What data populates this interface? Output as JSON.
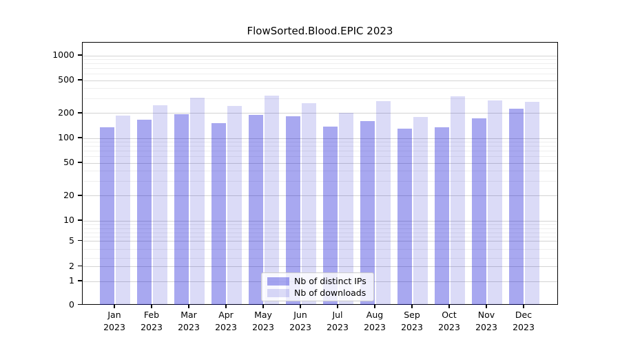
{
  "chart_data": {
    "type": "bar",
    "title": "FlowSorted.Blood.EPIC 2023",
    "categories": [
      "Jan 2023",
      "Feb 2023",
      "Mar 2023",
      "Apr 2023",
      "May 2023",
      "Jun 2023",
      "Jul 2023",
      "Aug 2023",
      "Sep 2023",
      "Oct 2023",
      "Nov 2023",
      "Dec 2023"
    ],
    "series": [
      {
        "name": "Nb of distinct IPs",
        "color": "#a9a9f0",
        "values": [
          135,
          167,
          196,
          153,
          193,
          184,
          138,
          162,
          131,
          136,
          173,
          227
        ]
      },
      {
        "name": "Nb of downloads",
        "color": "#dbdbf7",
        "values": [
          190,
          251,
          312,
          245,
          331,
          264,
          202,
          282,
          180,
          324,
          286,
          275
        ]
      }
    ],
    "yscale": "symlog",
    "yticks": [
      0,
      1,
      2,
      5,
      10,
      20,
      50,
      100,
      200,
      500,
      1000
    ],
    "yminorticks": [
      3,
      4,
      6,
      7,
      8,
      9,
      30,
      40,
      60,
      70,
      80,
      90,
      300,
      400,
      600,
      700,
      800,
      900
    ],
    "ylim": [
      0,
      1440
    ],
    "xlabel": "",
    "ylabel": "",
    "grid": "both",
    "legend_position": "lower center",
    "colors": {
      "bar_distinct_ips": "#a9a9f0",
      "bar_downloads": "#dbdbf7",
      "bar_distinct_ips_rgba": "rgba(0,0,210,0.34)",
      "bar_downloads_rgba": "rgba(0,0,200,0.14)",
      "grid_major": "#d3d3d3",
      "grid_minor": "#eeeeee",
      "axis": "#000000",
      "background": "#ffffff"
    }
  }
}
